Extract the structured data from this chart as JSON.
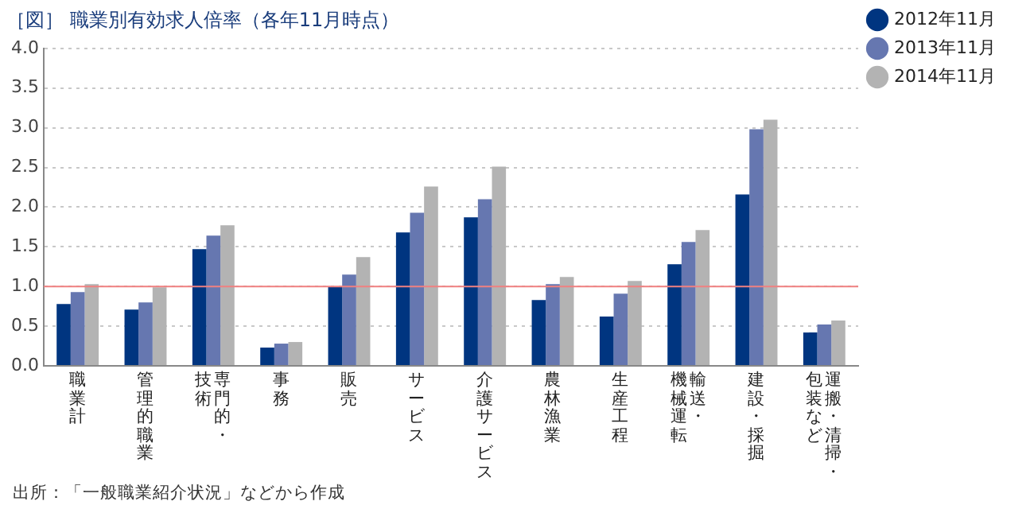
{
  "chart_data": {
    "type": "bar",
    "title": "［図］ 職業別有効求人倍率（各年11月時点）",
    "categories": [
      "職業計",
      "管理的職業",
      "専門的・技術",
      "事務",
      "販売",
      "サービス",
      "介護サービス",
      "農林漁業",
      "生産工程",
      "輸送・機械運転",
      "建設・採掘",
      "運搬・清掃・包装など"
    ],
    "series": [
      {
        "name": "2012年11月",
        "color": "#003580",
        "values": [
          0.78,
          0.71,
          1.47,
          0.23,
          1.0,
          1.68,
          1.87,
          0.83,
          0.62,
          1.28,
          2.16,
          0.42
        ]
      },
      {
        "name": "2013年11月",
        "color": "#6677b0",
        "values": [
          0.93,
          0.8,
          1.64,
          0.28,
          1.15,
          1.93,
          2.1,
          1.03,
          0.91,
          1.56,
          2.98,
          0.52
        ]
      },
      {
        "name": "2014年11月",
        "color": "#b3b3b3",
        "values": [
          1.03,
          0.99,
          1.77,
          0.3,
          1.37,
          2.26,
          2.51,
          1.12,
          1.07,
          1.71,
          3.1,
          0.57
        ]
      }
    ],
    "ylim": [
      0,
      4
    ],
    "yticks": [
      {
        "value": 0,
        "label": "0.0"
      },
      0.5,
      {
        "value": 1,
        "label": "1.0"
      },
      1.5,
      {
        "value": 2,
        "label": "2.0"
      },
      2.5,
      {
        "value": 3,
        "label": "3.0"
      },
      3.5,
      {
        "value": 4,
        "label": "4.0"
      }
    ],
    "grid": "y",
    "legend": "right",
    "ref_lines": [
      {
        "axis": "y",
        "value": 1,
        "color": "#f08080"
      }
    ],
    "annotations": [
      "出所：「一般職業紹介状況」などから作成"
    ]
  }
}
